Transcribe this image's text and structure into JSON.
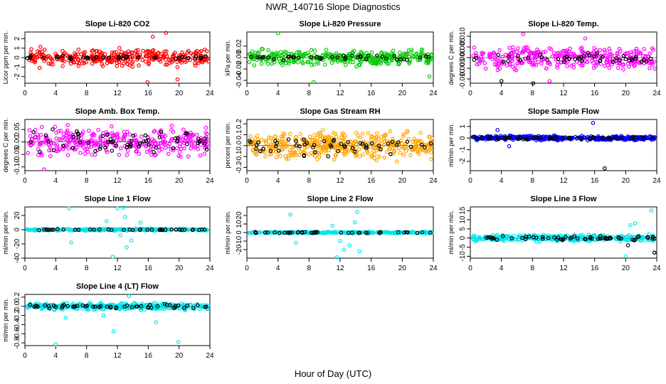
{
  "figure": {
    "title": "NWR_140716  Slope Diagnostics",
    "xlabel": "Hour of Day (UTC)"
  },
  "chart_data": [
    {
      "type": "scatter",
      "title": "Slope Li-820 CO2",
      "ylabel": "Licor ppm per min.",
      "xlim": [
        0,
        24
      ],
      "xticks": [
        "0",
        "4",
        "8",
        "12",
        "16",
        "20",
        "24"
      ],
      "ylim": [
        -2.7,
        2.7
      ],
      "yticks": [
        -2,
        -1,
        0,
        1,
        2
      ],
      "ytick_labels": [
        "-2",
        "-1",
        "0",
        "1",
        "2"
      ],
      "color": "#ff0000",
      "ref_color": "#000000",
      "series": [
        {
          "name": "",
          "n": 340,
          "amp": 1.2,
          "seed": 11,
          "spikes": [
            [
              15.9,
              -2.6
            ],
            [
              16.6,
              2.2
            ],
            [
              18.3,
              2.6
            ],
            [
              19.8,
              -2.3
            ]
          ]
        },
        {
          "name": "",
          "n": 40,
          "amp": 0.25,
          "seed": 12,
          "spikes": []
        }
      ]
    },
    {
      "type": "scatter",
      "title": "Slope Li-820 Pressure",
      "ylabel": "kPa per min.",
      "xlim": [
        0,
        24
      ],
      "xticks": [
        "0",
        "4",
        "8",
        "12",
        "16",
        "20",
        "24"
      ],
      "ylim": [
        -0.045,
        0.045
      ],
      "yticks": [
        -0.04,
        -0.02,
        0,
        0.02
      ],
      "ytick_labels": [
        "-0.04",
        "-0.02",
        "0.00",
        "0.02"
      ],
      "color": "#00cc00",
      "ref_color": "#000000",
      "series": [
        {
          "name": "",
          "n": 340,
          "amp": 0.018,
          "seed": 21,
          "spikes": [
            [
              4.0,
              0.043
            ],
            [
              8.6,
              -0.043
            ],
            [
              23.5,
              -0.033
            ]
          ]
        },
        {
          "name": "",
          "n": 40,
          "amp": 0.006,
          "seed": 22,
          "spikes": []
        }
      ]
    },
    {
      "type": "scatter",
      "title": "Slope Li-820 Temp.",
      "ylabel": "degrees C per min.",
      "xlim": [
        0,
        24
      ],
      "xticks": [
        "0",
        "4",
        "8",
        "12",
        "16",
        "20",
        "24"
      ],
      "ylim": [
        -0.012,
        0.012
      ],
      "yticks": [
        -0.01,
        -0.005,
        0,
        0.005,
        0.01
      ],
      "ytick_labels": [
        "-0.010",
        "-0.005",
        "0.000",
        "0.005",
        "0.010"
      ],
      "color": "#ff00ff",
      "ref_color": "#000000",
      "series": [
        {
          "name": "",
          "n": 330,
          "amp": 0.007,
          "seed": 31,
          "spikes": [
            [
              6.8,
              0.011
            ],
            [
              10.2,
              -0.011
            ],
            [
              14.8,
              0.009
            ]
          ]
        },
        {
          "name": "",
          "n": 45,
          "amp": 0.004,
          "seed": 32,
          "spikes": [
            [
              4.0,
              -0.011
            ],
            [
              8.1,
              -0.012
            ]
          ]
        }
      ]
    },
    {
      "type": "scatter",
      "title": "Slope Amb. Box Temp.",
      "ylabel": "degrees C per min.",
      "xlim": [
        0,
        24
      ],
      "xticks": [
        "0",
        "4",
        "8",
        "12",
        "16",
        "20",
        "24"
      ],
      "ylim": [
        -0.115,
        0.09
      ],
      "yticks": [
        -0.1,
        -0.05,
        0,
        0.05
      ],
      "ytick_labels": [
        "-0.10",
        "-0.05",
        "0.00",
        "0.05"
      ],
      "color": "#ff00ff",
      "ref_color": "#000000",
      "series": [
        {
          "name": "",
          "n": 330,
          "amp": 0.075,
          "seed": 41,
          "spikes": [
            [
              2.5,
              -0.11
            ]
          ]
        },
        {
          "name": "",
          "n": 60,
          "amp": 0.06,
          "seed": 42,
          "spikes": []
        }
      ]
    },
    {
      "type": "scatter",
      "title": "Slope Gas Stream RH",
      "ylabel": "percent per min.",
      "xlim": [
        0,
        24
      ],
      "xticks": [
        "0",
        "4",
        "8",
        "12",
        "16",
        "20",
        "24"
      ],
      "ylim": [
        -0.23,
        0.24
      ],
      "yticks": [
        -0.2,
        -0.1,
        0,
        0.1,
        0.2
      ],
      "ytick_labels": [
        "-0.2",
        "-0.1",
        "0.0",
        "0.1",
        "0.2"
      ],
      "color": "#ffa500",
      "ref_color": "#000000",
      "series": [
        {
          "name": "",
          "n": 420,
          "amp": 0.17,
          "seed": 51,
          "spikes": []
        },
        {
          "name": "",
          "n": 55,
          "amp": 0.12,
          "seed": 52,
          "spikes": []
        }
      ]
    },
    {
      "type": "scatter",
      "title": "Slope Sample Flow",
      "ylabel": "ml/min per min.",
      "xlim": [
        0,
        24
      ],
      "xticks": [
        "0",
        "4",
        "8",
        "12",
        "16",
        "20",
        "24"
      ],
      "ylim": [
        -2.8,
        1.6
      ],
      "yticks": [
        -2,
        -1,
        0,
        1
      ],
      "ytick_labels": [
        "-2",
        "-1",
        "0",
        "1"
      ],
      "color": "#0000ff",
      "ref_color": "#000000",
      "series": [
        {
          "name": "",
          "n": 380,
          "amp": 0.25,
          "seed": 61,
          "spikes": [
            [
              3.5,
              0.7
            ],
            [
              5.0,
              -0.7
            ],
            [
              15.8,
              1.3
            ]
          ]
        },
        {
          "name": "",
          "n": 60,
          "amp": 0.18,
          "seed": 62,
          "spikes": [
            [
              17.3,
              -2.6
            ]
          ]
        }
      ]
    },
    {
      "type": "scatter",
      "title": "Slope Line 1 Flow",
      "ylabel": "ml/min per min.",
      "xlim": [
        0,
        24
      ],
      "xticks": [
        "0",
        "4",
        "8",
        "12",
        "16",
        "20",
        "24"
      ],
      "ylim": [
        -40,
        32
      ],
      "yticks": [
        -40,
        -20,
        0,
        20
      ],
      "ytick_labels": [
        "-40",
        "-20",
        "0",
        "20"
      ],
      "color": "#00e5ee",
      "ref_color": "#000000",
      "series": [
        {
          "name": "",
          "n": 260,
          "amp": 2,
          "seed": 71,
          "spikes": [
            [
              5.7,
              30
            ],
            [
              12.0,
              30
            ],
            [
              12.8,
              31
            ],
            [
              11.4,
              -38
            ],
            [
              13.2,
              -25
            ],
            [
              13.8,
              -15
            ],
            [
              6.0,
              -18
            ],
            [
              10.6,
              12
            ],
            [
              15.0,
              10
            ],
            [
              12.4,
              -8
            ],
            [
              13.0,
              18
            ]
          ]
        },
        {
          "name": "",
          "n": 40,
          "amp": 1,
          "seed": 72,
          "spikes": []
        }
      ]
    },
    {
      "type": "scatter",
      "title": "Slope Line 2 Flow",
      "ylabel": "ml/min per min.",
      "xlim": [
        0,
        24
      ],
      "xticks": [
        "0",
        "4",
        "8",
        "12",
        "16",
        "20",
        "24"
      ],
      "ylim": [
        -30,
        30
      ],
      "yticks": [
        -20,
        -10,
        0,
        10,
        20
      ],
      "ytick_labels": [
        "-20",
        "-10",
        "0",
        "10",
        "20"
      ],
      "color": "#00e5ee",
      "ref_color": "#000000",
      "series": [
        {
          "name": "",
          "n": 260,
          "amp": 1.5,
          "seed": 81,
          "spikes": [
            [
              5.6,
              21
            ],
            [
              6.3,
              -12
            ],
            [
              11.6,
              -29
            ],
            [
              12.5,
              -20
            ],
            [
              13.2,
              -15
            ],
            [
              14.5,
              -22
            ],
            [
              14.2,
              24
            ],
            [
              11.0,
              8
            ],
            [
              13.9,
              12
            ],
            [
              12.0,
              -10
            ]
          ]
        },
        {
          "name": "",
          "n": 40,
          "amp": 1,
          "seed": 82,
          "spikes": []
        }
      ]
    },
    {
      "type": "scatter",
      "title": "Slope Line 3 Flow",
      "ylabel": "ml/min per min.",
      "xlim": [
        0,
        24
      ],
      "xticks": [
        "0",
        "4",
        "8",
        "12",
        "16",
        "20",
        "24"
      ],
      "ylim": [
        -11,
        17
      ],
      "yticks": [
        -10,
        -5,
        0,
        5,
        10,
        15
      ],
      "ytick_labels": [
        "-10",
        "-5",
        "0",
        "5",
        "10",
        "15"
      ],
      "color": "#00e5ee",
      "ref_color": "#000000",
      "series": [
        {
          "name": "",
          "n": 360,
          "amp": 2.5,
          "seed": 91,
          "spikes": [
            [
              23.3,
              15
            ],
            [
              20.0,
              -10
            ],
            [
              20.6,
              7
            ],
            [
              21.2,
              8
            ]
          ]
        },
        {
          "name": "",
          "n": 60,
          "amp": 1.8,
          "seed": 92,
          "spikes": [
            [
              23.7,
              -8
            ],
            [
              20.3,
              -4
            ]
          ]
        }
      ]
    },
    {
      "type": "scatter",
      "title": "Slope Line 4 (LT) Flow",
      "ylabel": "ml/min per min.",
      "xlim": [
        0,
        24
      ],
      "xticks": [
        "0",
        "4",
        "8",
        "12",
        "16",
        "20",
        "24"
      ],
      "ylim": [
        -0.86,
        0.26
      ],
      "yticks": [
        -0.8,
        -0.6,
        -0.4,
        -0.2,
        0,
        0.2
      ],
      "ytick_labels": [
        "-0.8",
        "-0.6",
        "-0.4",
        "-0.2",
        "0.0",
        "0.2"
      ],
      "color": "#00e5ee",
      "ref_color": "#000000",
      "series": [
        {
          "name": "",
          "n": 360,
          "amp": 0.1,
          "seed": 101,
          "spikes": [
            [
              4.0,
              -0.83
            ],
            [
              11.5,
              -0.55
            ],
            [
              10.2,
              -0.2
            ],
            [
              17.0,
              -0.35
            ],
            [
              19.9,
              -0.78
            ],
            [
              13.5,
              0.22
            ],
            [
              5.3,
              -0.25
            ]
          ]
        },
        {
          "name": "",
          "n": 55,
          "amp": 0.06,
          "seed": 102,
          "spikes": []
        }
      ]
    }
  ]
}
